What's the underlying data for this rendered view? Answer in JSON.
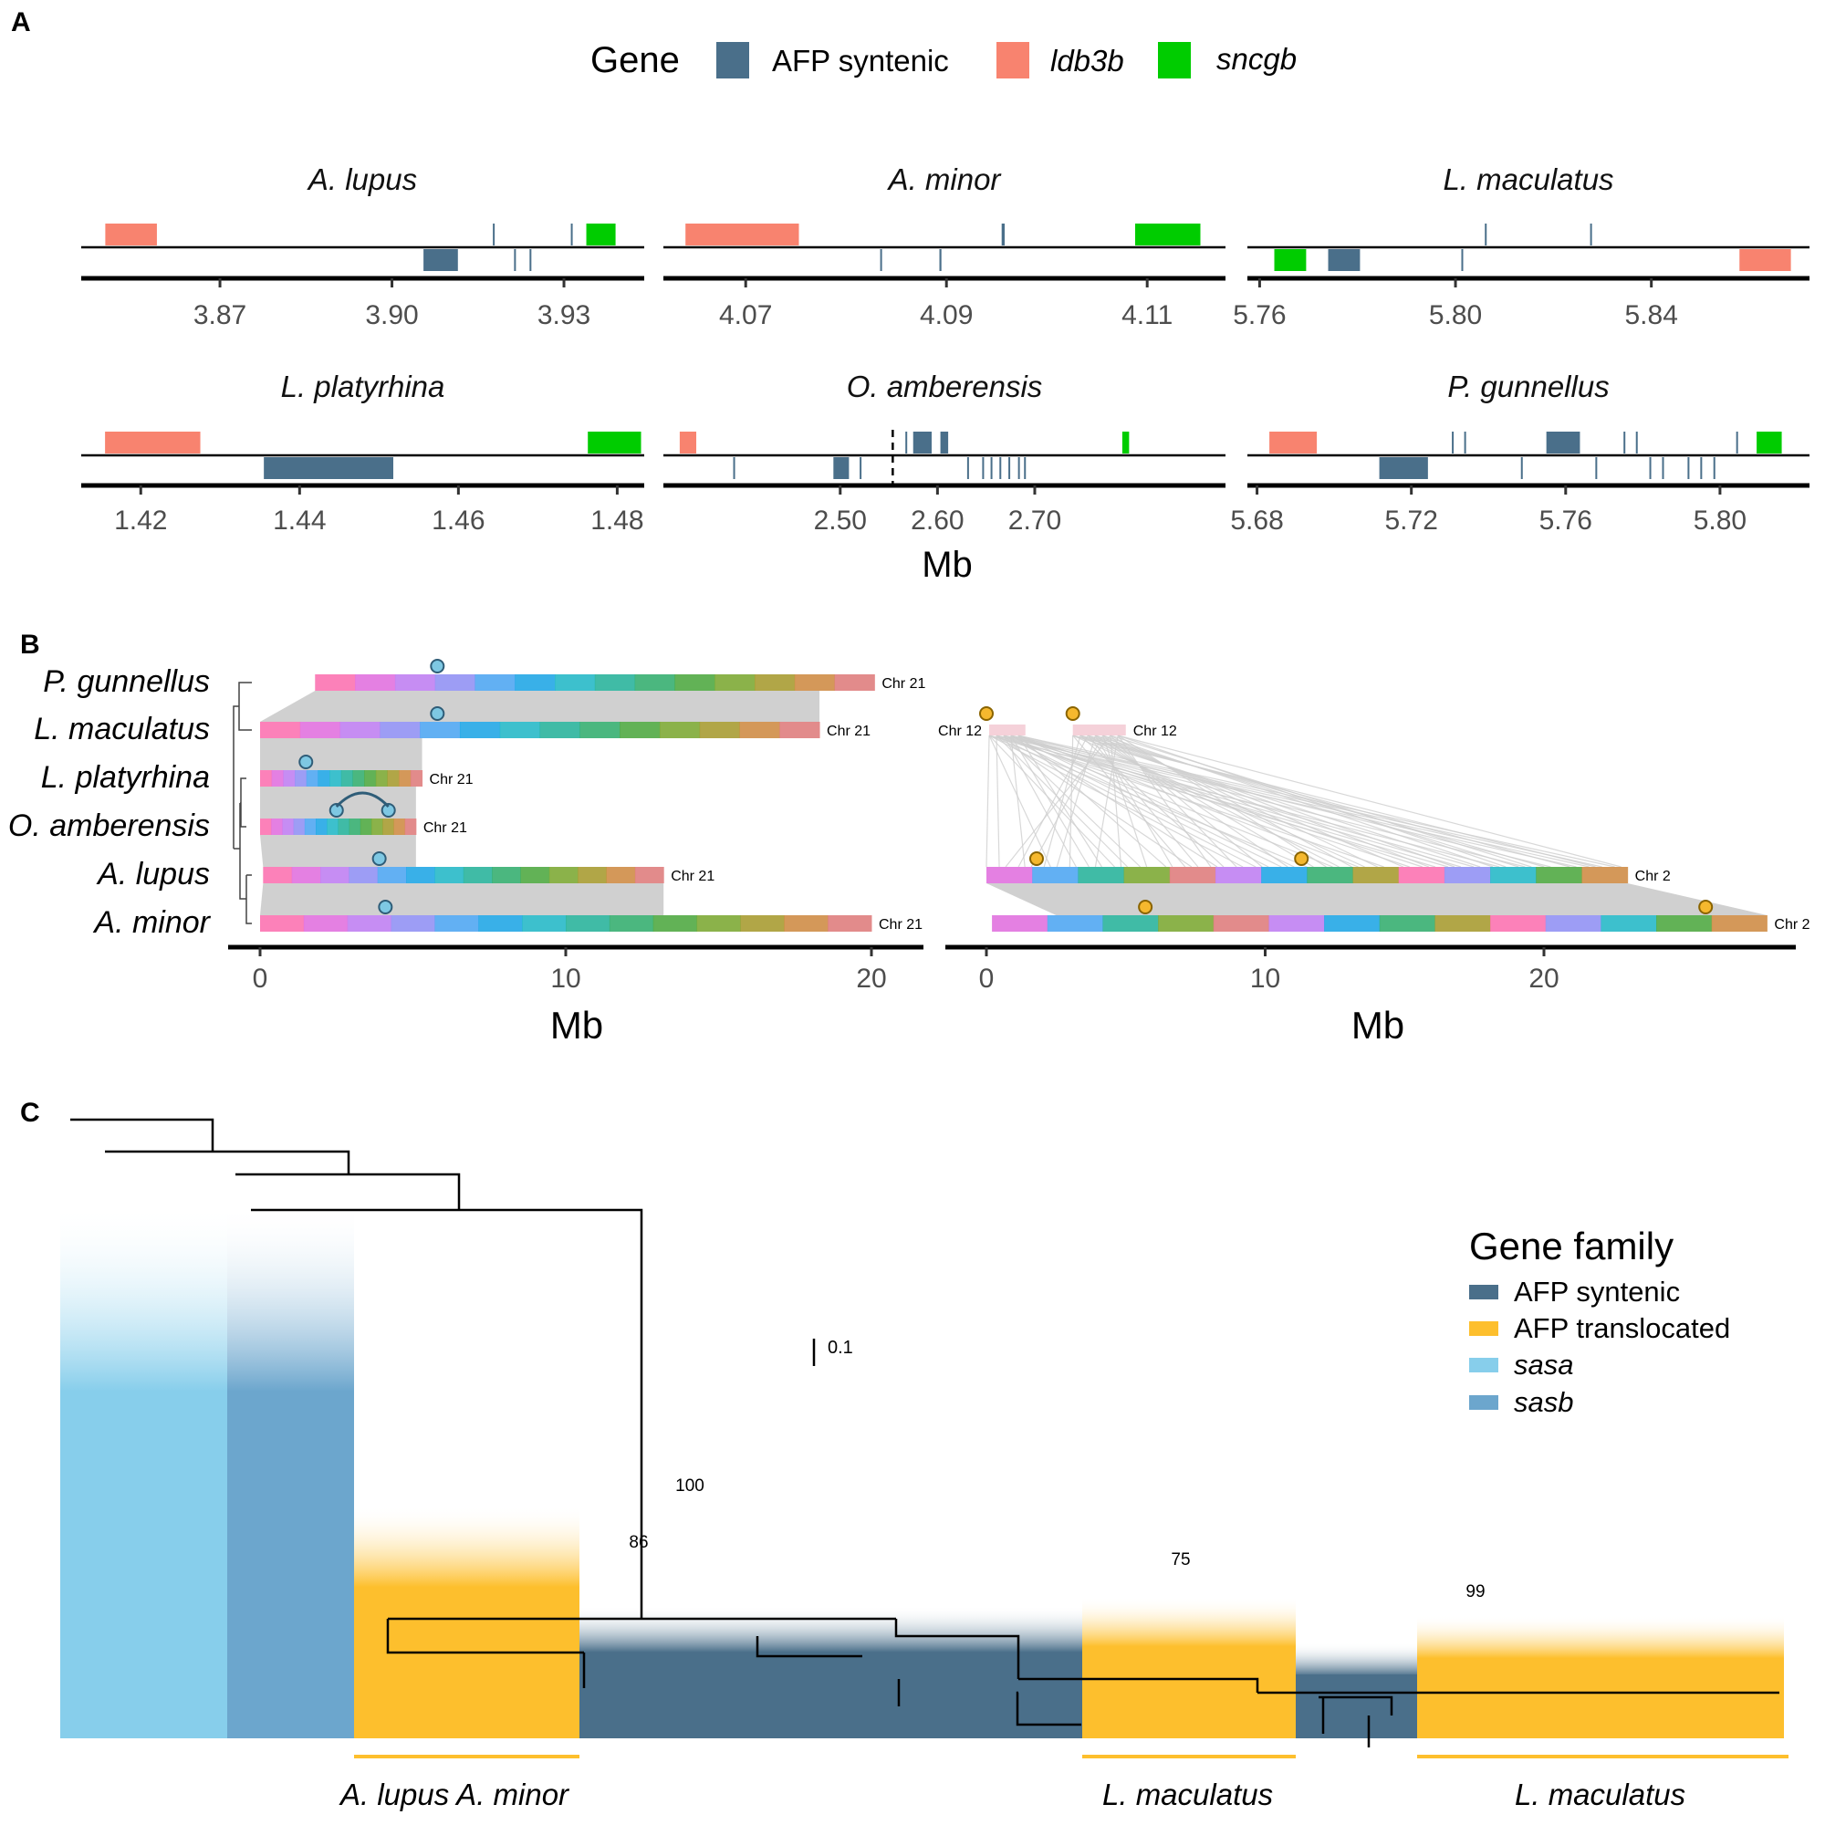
{
  "figure": {
    "panel_letters": {
      "a": "A",
      "b": "B",
      "c": "C"
    }
  },
  "chart_data": [
    {
      "type": "gene-track",
      "panel": "A",
      "legend": {
        "title": "Gene",
        "items": [
          {
            "label": "AFP syntenic",
            "color": "#4a6f8a",
            "italic": false
          },
          {
            "label": "ldb3b",
            "color": "#f8836f",
            "italic": true
          },
          {
            "label": "sncgb",
            "color": "#00cc00",
            "italic": true
          }
        ]
      },
      "xlabel": "Mb",
      "tracks": [
        {
          "species": "A. lupus",
          "xlim": [
            3.8458,
            3.944
          ],
          "ticks": [
            3.87,
            3.9,
            3.93
          ],
          "tick_labels": [
            "3.87",
            "3.90",
            "3.93"
          ],
          "features": [
            {
              "gene": "ldb3b",
              "strand": "+",
              "start": 3.85,
              "end": 3.859
            },
            {
              "gene": "AFP syntenic",
              "strand": "-",
              "start": 3.9055,
              "end": 3.9115
            },
            {
              "gene": "AFP syntenic",
              "strand": "+",
              "start": 3.9176,
              "end": 3.9178
            },
            {
              "gene": "AFP syntenic",
              "strand": "-",
              "start": 3.9213,
              "end": 3.9215
            },
            {
              "gene": "AFP syntenic",
              "strand": "-",
              "start": 3.924,
              "end": 3.9242
            },
            {
              "gene": "AFP syntenic",
              "strand": "+",
              "start": 3.9312,
              "end": 3.9314
            },
            {
              "gene": "sncgb",
              "strand": "+",
              "start": 3.9339,
              "end": 3.939
            }
          ]
        },
        {
          "species": "A. minor",
          "xlim": [
            4.0618,
            4.1178
          ],
          "ticks": [
            4.07,
            4.09,
            4.11
          ],
          "tick_labels": [
            "4.07",
            "4.09",
            "4.11"
          ],
          "features": [
            {
              "gene": "ldb3b",
              "strand": "+",
              "start": 4.064,
              "end": 4.0753
            },
            {
              "gene": "AFP syntenic",
              "strand": "-",
              "start": 4.0834,
              "end": 4.0835
            },
            {
              "gene": "AFP syntenic",
              "strand": "-",
              "start": 4.0893,
              "end": 4.0895
            },
            {
              "gene": "AFP syntenic",
              "strand": "+",
              "start": 4.0955,
              "end": 4.0958
            },
            {
              "gene": "sncgb",
              "strand": "+",
              "start": 4.1088,
              "end": 4.1153
            }
          ]
        },
        {
          "species": "L. maculatus",
          "xlim": [
            5.7575,
            5.8723
          ],
          "ticks": [
            5.76,
            5.8,
            5.84
          ],
          "tick_labels": [
            "5.76",
            "5.80",
            "5.84"
          ],
          "features": [
            {
              "gene": "sncgb",
              "strand": "-",
              "start": 5.763,
              "end": 5.7695
            },
            {
              "gene": "AFP syntenic",
              "strand": "-",
              "start": 5.774,
              "end": 5.7805
            },
            {
              "gene": "AFP syntenic",
              "strand": "-",
              "start": 5.8012,
              "end": 5.8014
            },
            {
              "gene": "AFP syntenic",
              "strand": "+",
              "start": 5.806,
              "end": 5.8062
            },
            {
              "gene": "AFP syntenic",
              "strand": "+",
              "start": 5.8275,
              "end": 5.8277
            },
            {
              "gene": "ldb3b",
              "strand": "-",
              "start": 5.858,
              "end": 5.8685
            }
          ]
        },
        {
          "species": "L. platyrhina",
          "xlim": [
            1.4125,
            1.4834
          ],
          "ticks": [
            1.42,
            1.44,
            1.46,
            1.48
          ],
          "tick_labels": [
            "1.42",
            "1.44",
            "1.46",
            "1.48"
          ],
          "features": [
            {
              "gene": "ldb3b",
              "strand": "+",
              "start": 1.4155,
              "end": 1.4275
            },
            {
              "gene": "AFP syntenic",
              "strand": "-",
              "start": 1.4355,
              "end": 1.4518
            },
            {
              "gene": "sncgb",
              "strand": "+",
              "start": 1.4763,
              "end": 1.483
            }
          ]
        },
        {
          "species": "O. amberensis",
          "xlim": [
            2.3182,
            2.8961
          ],
          "ticks": [
            2.5,
            2.6,
            2.7
          ],
          "tick_labels": [
            "2.50",
            "2.60",
            "2.70"
          ],
          "dashed_marker": 2.554,
          "features": [
            {
              "gene": "ldb3b",
              "strand": "+",
              "start": 2.335,
              "end": 2.352
            },
            {
              "gene": "AFP syntenic",
              "strand": "-",
              "start": 2.39,
              "end": 2.391
            },
            {
              "gene": "AFP syntenic",
              "strand": "-",
              "start": 2.493,
              "end": 2.509
            },
            {
              "gene": "AFP syntenic",
              "strand": "-",
              "start": 2.52,
              "end": 2.521
            },
            {
              "gene": "AFP syntenic",
              "strand": "+",
              "start": 2.567,
              "end": 2.568
            },
            {
              "gene": "AFP syntenic",
              "strand": "+",
              "start": 2.575,
              "end": 2.594
            },
            {
              "gene": "AFP syntenic",
              "strand": "+",
              "start": 2.603,
              "end": 2.611
            },
            {
              "gene": "AFP syntenic",
              "strand": "-",
              "start": 2.6305,
              "end": 2.6312
            },
            {
              "gene": "AFP syntenic",
              "strand": "-",
              "start": 2.646,
              "end": 2.6467
            },
            {
              "gene": "AFP syntenic",
              "strand": "-",
              "start": 2.6546,
              "end": 2.6553
            },
            {
              "gene": "AFP syntenic",
              "strand": "-",
              "start": 2.6637,
              "end": 2.6644
            },
            {
              "gene": "AFP syntenic",
              "strand": "-",
              "start": 2.6729,
              "end": 2.6738
            },
            {
              "gene": "AFP syntenic",
              "strand": "-",
              "start": 2.6828,
              "end": 2.6835
            },
            {
              "gene": "AFP syntenic",
              "strand": "-",
              "start": 2.689,
              "end": 2.6897
            },
            {
              "gene": "sncgb",
              "strand": "+",
              "start": 2.79,
              "end": 2.797
            }
          ]
        },
        {
          "species": "P. gunnellus",
          "xlim": [
            5.6775,
            5.8232
          ],
          "ticks": [
            5.68,
            5.72,
            5.76,
            5.8
          ],
          "tick_labels": [
            "5.68",
            "5.72",
            "5.76",
            "5.80"
          ],
          "features": [
            {
              "gene": "ldb3b",
              "strand": "+",
              "start": 5.6832,
              "end": 5.6955
            },
            {
              "gene": "AFP syntenic",
              "strand": "-",
              "start": 5.7117,
              "end": 5.7243
            },
            {
              "gene": "AFP syntenic",
              "strand": "+",
              "start": 5.7305,
              "end": 5.7307
            },
            {
              "gene": "AFP syntenic",
              "strand": "+",
              "start": 5.7337,
              "end": 5.7339
            },
            {
              "gene": "AFP syntenic",
              "strand": "-",
              "start": 5.7484,
              "end": 5.7486
            },
            {
              "gene": "AFP syntenic",
              "strand": "+",
              "start": 5.755,
              "end": 5.7637
            },
            {
              "gene": "AFP syntenic",
              "strand": "-",
              "start": 5.7677,
              "end": 5.7679
            },
            {
              "gene": "AFP syntenic",
              "strand": "+",
              "start": 5.775,
              "end": 5.7752
            },
            {
              "gene": "AFP syntenic",
              "strand": "+",
              "start": 5.7782,
              "end": 5.7784
            },
            {
              "gene": "AFP syntenic",
              "strand": "-",
              "start": 5.7817,
              "end": 5.7819
            },
            {
              "gene": "AFP syntenic",
              "strand": "-",
              "start": 5.785,
              "end": 5.7852
            },
            {
              "gene": "AFP syntenic",
              "strand": "-",
              "start": 5.7916,
              "end": 5.7918
            },
            {
              "gene": "AFP syntenic",
              "strand": "-",
              "start": 5.7949,
              "end": 5.7951
            },
            {
              "gene": "AFP syntenic",
              "strand": "-",
              "start": 5.7983,
              "end": 5.7985
            },
            {
              "gene": "AFP syntenic",
              "strand": "+",
              "start": 5.8042,
              "end": 5.8044
            },
            {
              "gene": "sncgb",
              "strand": "+",
              "start": 5.8095,
              "end": 5.816
            }
          ]
        }
      ]
    },
    {
      "type": "synteny",
      "panel": "B",
      "xlabel": "Mb",
      "species_order": [
        "P. gunnellus",
        "L. maculatus",
        "L. platyrhina",
        "O. amberensis",
        "A. lupus",
        "A. minor"
      ],
      "left": {
        "xlim": [
          -0.1,
          21
        ],
        "ticks": [
          0,
          10,
          20
        ],
        "tick_labels": [
          "0",
          "10",
          "20"
        ],
        "chromosomes": [
          {
            "species": "P. gunnellus",
            "label": "Chr 21",
            "start": 1.8,
            "end": 20.1,
            "afp_markers": [
              5.8
            ]
          },
          {
            "species": "L. maculatus",
            "label": "Chr 21",
            "start": 0.0,
            "end": 18.3,
            "afp_markers": [
              5.8
            ]
          },
          {
            "species": "L. platyrhina",
            "label": "Chr 21",
            "start": 0.0,
            "end": 5.3,
            "afp_markers": [
              1.5
            ]
          },
          {
            "species": "O. amberensis",
            "label": "Chr 21",
            "start": 0.0,
            "end": 5.1,
            "afp_markers": [
              2.5,
              4.2
            ]
          },
          {
            "species": "A. lupus",
            "label": "Chr 21",
            "start": 0.1,
            "end": 13.2,
            "afp_markers": [
              3.9
            ]
          },
          {
            "species": "A. minor",
            "label": "Chr 21",
            "start": 0.0,
            "end": 20.0,
            "afp_markers": [
              4.1
            ]
          }
        ]
      },
      "right": {
        "xlim": [
          -1.3,
          28.7
        ],
        "ticks": [
          0,
          10,
          20
        ],
        "tick_labels": [
          "0",
          "10",
          "20"
        ],
        "chromosomes": [
          {
            "species": "L. maculatus",
            "label": "Chr 12",
            "start": 0.1,
            "end": 1.4,
            "afp_markers": [
              0.0
            ],
            "label_side": "left"
          },
          {
            "species": "L. maculatus",
            "label": "Chr 12",
            "start": 3.1,
            "end": 5.0,
            "afp_markers": [
              3.1
            ],
            "label_side": "right"
          },
          {
            "species": "A. lupus",
            "label": "Chr 2",
            "start": 0.0,
            "end": 23.0,
            "afp_markers": [
              1.8,
              11.3
            ]
          },
          {
            "species": "A. minor",
            "label": "Chr 2",
            "start": 0.2,
            "end": 28.0,
            "afp_markers": [
              5.7,
              25.8
            ]
          }
        ]
      },
      "marker_colors": {
        "chr21": "#7ec8e3",
        "chr12": "#f5b82e"
      }
    },
    {
      "type": "tree",
      "panel": "C",
      "scale_bar_label": "0.1",
      "bootstrap_labels": [
        "100",
        "86",
        "75",
        "99"
      ],
      "legend": {
        "title": "Gene family",
        "items": [
          {
            "label": "AFP syntenic",
            "color": "#4a6f8a",
            "italic": false
          },
          {
            "label": "AFP translocated",
            "color": "#fdbf2d",
            "italic": false
          },
          {
            "label": "sasa",
            "color": "#87ceeb",
            "italic": true
          },
          {
            "label": "sasb",
            "color": "#6ca6cd",
            "italic": true
          }
        ]
      },
      "tip_blocks": [
        {
          "family": "sasa",
          "tips": 18
        },
        {
          "family": "sasb",
          "tips": 14
        },
        {
          "family": "AFP translocated",
          "tips": 24
        },
        {
          "family": "AFP syntenic",
          "tips": 53
        },
        {
          "family": "AFP translocated",
          "tips": 23
        },
        {
          "family": "AFP syntenic",
          "tips": 13
        },
        {
          "family": "AFP translocated",
          "tips": 39
        }
      ],
      "clade_labels": [
        {
          "text": "A. lupus  A. minor"
        },
        {
          "text": "L. maculatus"
        },
        {
          "text": "L. maculatus"
        }
      ]
    }
  ]
}
